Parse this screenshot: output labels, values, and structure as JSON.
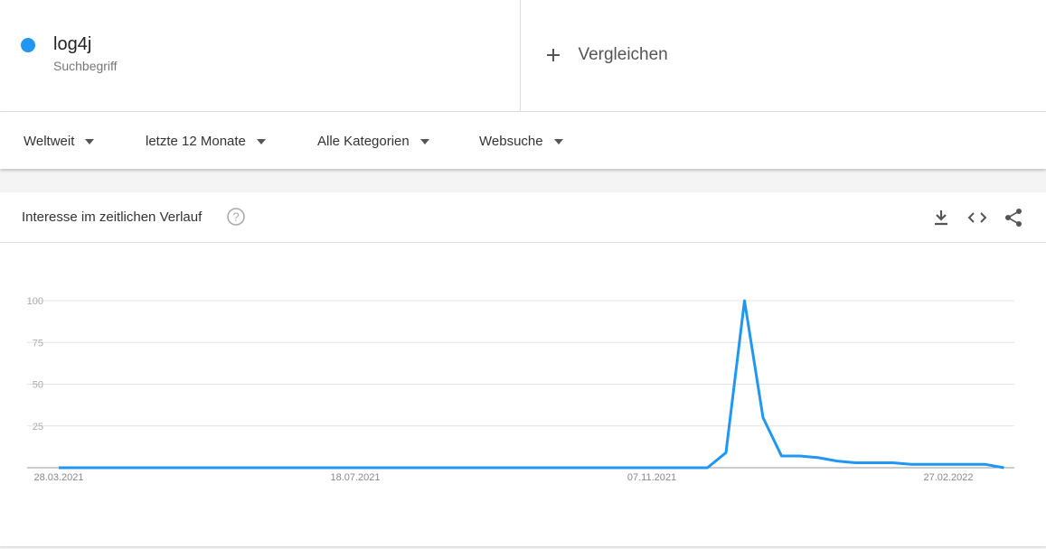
{
  "search_term": {
    "sublabel": "Suchbegriff"
  },
  "compare": {
    "label": "Vergleichen"
  },
  "filters": [
    "Weltweit",
    "letzte 12 Monate",
    "Alle Kategorien",
    "Websuche"
  ],
  "card": {
    "title": "Interesse im zeitlichen Verlauf"
  },
  "chart_data": {
    "type": "line",
    "categories": [
      "28.03.2021",
      null,
      null,
      null,
      null,
      null,
      null,
      null,
      null,
      null,
      null,
      null,
      null,
      null,
      null,
      null,
      "18.07.2021",
      null,
      null,
      null,
      null,
      null,
      null,
      null,
      null,
      null,
      null,
      null,
      null,
      null,
      null,
      null,
      "07.11.2021",
      null,
      null,
      null,
      null,
      null,
      null,
      null,
      null,
      null,
      null,
      null,
      null,
      null,
      null,
      null,
      "27.02.2022",
      null,
      null,
      null
    ],
    "series": [
      {
        "name": "log4j",
        "color": "#2196f3",
        "values": [
          0,
          0,
          0,
          0,
          0,
          0,
          0,
          0,
          0,
          0,
          0,
          0,
          0,
          0,
          0,
          0,
          0,
          0,
          0,
          0,
          0,
          0,
          0,
          0,
          0,
          0,
          0,
          0,
          0,
          0,
          0,
          0,
          0,
          0,
          0,
          0,
          9,
          100,
          30,
          7,
          7,
          6,
          4,
          3,
          3,
          3,
          2,
          2,
          2,
          2,
          2,
          0
        ]
      }
    ],
    "ylim": [
      0,
      100
    ],
    "yticks": [
      25,
      50,
      75,
      100
    ],
    "grid": true
  }
}
